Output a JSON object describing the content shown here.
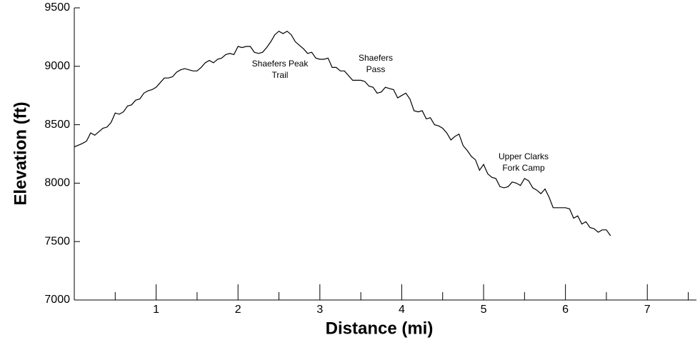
{
  "chart_data": {
    "type": "line",
    "xlabel": "Distance (mi)",
    "ylabel": "Elevation (ft)",
    "x": [
      0,
      0.1,
      0.15,
      0.2,
      0.25,
      0.3,
      0.35,
      0.4,
      0.45,
      0.5,
      0.55,
      0.6,
      0.65,
      0.7,
      0.75,
      0.8,
      0.85,
      0.9,
      0.95,
      1.0,
      1.05,
      1.1,
      1.15,
      1.2,
      1.25,
      1.3,
      1.35,
      1.4,
      1.45,
      1.5,
      1.55,
      1.6,
      1.65,
      1.7,
      1.75,
      1.8,
      1.85,
      1.9,
      1.95,
      2.0,
      2.05,
      2.1,
      2.15,
      2.2,
      2.25,
      2.3,
      2.35,
      2.4,
      2.45,
      2.5,
      2.55,
      2.6,
      2.65,
      2.7,
      2.75,
      2.8,
      2.85,
      2.9,
      2.95,
      3.0,
      3.05,
      3.1,
      3.15,
      3.2,
      3.25,
      3.3,
      3.35,
      3.4,
      3.45,
      3.5,
      3.55,
      3.6,
      3.65,
      3.7,
      3.75,
      3.8,
      3.85,
      3.9,
      3.95,
      4.0,
      4.05,
      4.1,
      4.15,
      4.2,
      4.25,
      4.3,
      4.35,
      4.4,
      4.45,
      4.5,
      4.55,
      4.6,
      4.65,
      4.7,
      4.75,
      4.8,
      4.85,
      4.9,
      4.95,
      5.0,
      5.05,
      5.1,
      5.15,
      5.2,
      5.25,
      5.3,
      5.35,
      5.4,
      5.45,
      5.5,
      5.55,
      5.6,
      5.65,
      5.7,
      5.75,
      5.8,
      5.85,
      5.9,
      5.95,
      6.0,
      6.05,
      6.1,
      6.15,
      6.2,
      6.25,
      6.3,
      6.35,
      6.4,
      6.45,
      6.5,
      6.55
    ],
    "series": [
      {
        "color": "#000000",
        "values": [
          8310,
          8340,
          8360,
          8430,
          8410,
          8440,
          8470,
          8480,
          8520,
          8600,
          8590,
          8610,
          8660,
          8670,
          8710,
          8720,
          8770,
          8790,
          8800,
          8820,
          8860,
          8900,
          8900,
          8910,
          8950,
          8970,
          8980,
          8970,
          8960,
          8960,
          8990,
          9030,
          9050,
          9030,
          9060,
          9070,
          9100,
          9110,
          9100,
          9170,
          9160,
          9170,
          9170,
          9120,
          9110,
          9120,
          9160,
          9210,
          9270,
          9300,
          9280,
          9300,
          9270,
          9210,
          9180,
          9150,
          9110,
          9120,
          9070,
          9060,
          9060,
          9070,
          8990,
          8990,
          8960,
          8960,
          8920,
          8880,
          8880,
          8880,
          8870,
          8830,
          8820,
          8770,
          8780,
          8820,
          8810,
          8800,
          8730,
          8750,
          8770,
          8720,
          8620,
          8610,
          8620,
          8550,
          8560,
          8500,
          8490,
          8470,
          8430,
          8370,
          8400,
          8420,
          8320,
          8280,
          8230,
          8200,
          8110,
          8160,
          8080,
          8050,
          8040,
          7970,
          7960,
          7970,
          8010,
          8000,
          7980,
          8040,
          8020,
          7960,
          7940,
          7910,
          7950,
          7880,
          7790,
          7790,
          7790,
          7790,
          7780,
          7700,
          7720,
          7650,
          7670,
          7620,
          7610,
          7580,
          7600,
          7600,
          7550
        ]
      }
    ],
    "annotations": [
      [
        "Shaefers Peak",
        "Trail"
      ],
      [
        "Shaefers",
        "Pass"
      ],
      [
        "Upper Clarks",
        "Fork Camp"
      ]
    ],
    "xlim": [
      0,
      7.6
    ],
    "xticks": [
      1,
      2,
      3,
      4,
      5,
      6,
      7
    ],
    "xminorticks": [
      0.5,
      1.5,
      2.5,
      3.5,
      4.5,
      5.5,
      6.5,
      7.5
    ],
    "ylim": [
      7000,
      9500
    ],
    "yticks": [
      7000,
      7500,
      8000,
      8500,
      9000,
      9500
    ]
  }
}
